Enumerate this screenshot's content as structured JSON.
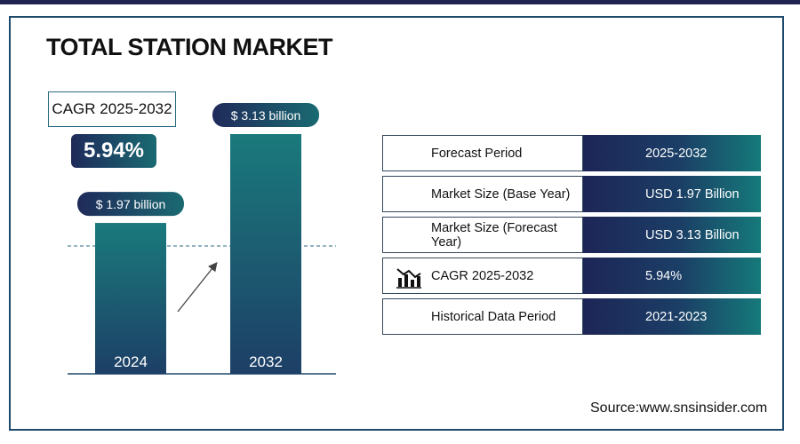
{
  "title": "TOTAL STATION MARKET",
  "cagr": {
    "label": "CAGR 2025-2032",
    "value": "5.94%"
  },
  "chart_data": {
    "type": "bar",
    "categories": [
      "2024",
      "2032"
    ],
    "values": [
      1.97,
      3.13
    ],
    "value_labels": [
      "$ 1.97 billion",
      "$ 3.13 billion"
    ],
    "ylim": [
      0,
      3.5
    ],
    "bar_color": "#1a6f78"
  },
  "table": [
    {
      "label": "Forecast Period",
      "value": "2025-2032",
      "icon": ""
    },
    {
      "label": "Market Size (Base Year)",
      "value": "USD 1.97 Billion",
      "icon": ""
    },
    {
      "label": "Market Size (Forecast Year)",
      "value": "USD 3.13 Billion",
      "icon": ""
    },
    {
      "label": "CAGR 2025-2032",
      "value": "5.94%",
      "icon": "bar-chart-icon"
    },
    {
      "label": "Historical Data Period",
      "value": "2021-2023",
      "icon": ""
    }
  ],
  "source": "Source:www.snsinsider.com",
  "colors": {
    "navy": "#1f2452",
    "teal": "#157a7a",
    "border": "#1e4a6b"
  }
}
